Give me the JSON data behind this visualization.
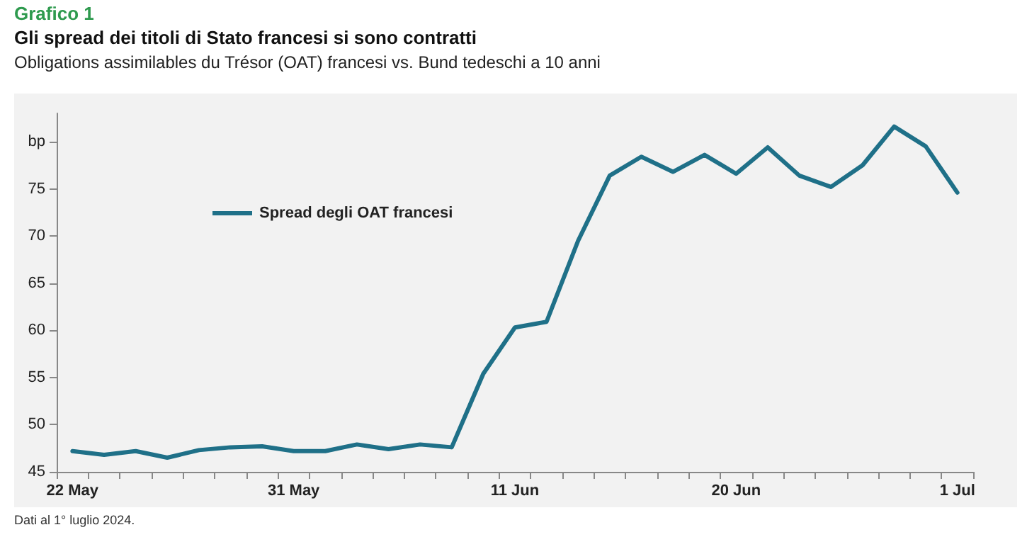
{
  "chart_data": {
    "type": "line",
    "title": "Gli spread dei titoli di Stato francesi si sono contratti",
    "subtitle": "Obligations assimilables du Trésor (OAT) francesi vs. Bund tedeschi a 10 anni",
    "annotations": [
      "Grafico 1",
      "Dati al 1° luglio 2024."
    ],
    "categories": [
      "22 May",
      null,
      null,
      null,
      null,
      null,
      null,
      "31 May",
      null,
      null,
      null,
      null,
      null,
      null,
      "11 Jun",
      null,
      null,
      null,
      null,
      null,
      null,
      "20 Jun",
      null,
      null,
      null,
      null,
      null,
      null,
      "1 Jul"
    ],
    "series": [
      {
        "name": "Spread degli OAT francesi",
        "color": "#1f7088",
        "values": [
          47.2,
          46.8,
          47.2,
          46.5,
          47.3,
          47.6,
          47.7,
          47.2,
          47.2,
          47.9,
          47.4,
          47.9,
          47.6,
          55.4,
          60.3,
          60.9,
          69.5,
          76.4,
          78.4,
          76.8,
          78.6,
          76.6,
          79.4,
          76.4,
          75.2,
          77.5,
          81.6,
          79.5,
          74.6
        ]
      }
    ],
    "ylim": [
      45,
      83
    ],
    "yticks": [
      45,
      50,
      55,
      60,
      65,
      70,
      75,
      {
        "value": 80,
        "label": "bp"
      }
    ],
    "grid": false,
    "legend": "top left",
    "marker": "none",
    "line_style": "solid"
  }
}
